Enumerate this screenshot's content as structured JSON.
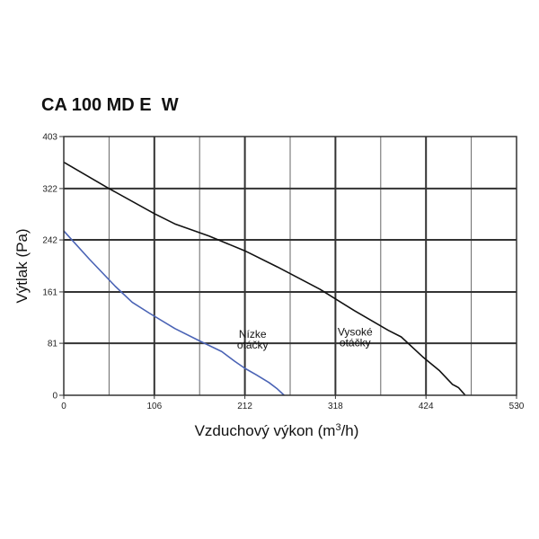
{
  "chart_data": {
    "type": "line",
    "title": "CA 100 MD E  W",
    "xlabel": "Vzduchový výkon (m",
    "xlabel_sup": "3",
    "xlabel_end": "/h)",
    "ylabel": "Výtlak (Pa)",
    "xlim": [
      0,
      530
    ],
    "ylim": [
      0,
      403
    ],
    "x_ticks": [
      0,
      106,
      212,
      318,
      424,
      530
    ],
    "y_ticks": [
      0,
      81,
      161,
      242,
      322,
      403
    ],
    "x_tick_labels": [
      "0",
      "106",
      "212",
      "318",
      "424",
      "530"
    ],
    "y_tick_labels": [
      "0",
      "81",
      "161",
      "242",
      "322",
      "403"
    ],
    "grid": true,
    "legend": "none",
    "series": [
      {
        "color": "#111111",
        "x": [
          0,
          53,
          106,
          130,
          170,
          212,
          250,
          300,
          340,
          380,
          395,
          420,
          440,
          455,
          462,
          466,
          470
        ],
        "y": [
          363,
          322,
          283,
          267,
          248,
          225,
          200,
          165,
          132,
          101,
          91,
          60,
          38,
          17,
          12,
          6,
          0
        ]
      },
      {
        "color": "#4a63b5",
        "x": [
          0,
          30,
          60,
          80,
          100,
          130,
          160,
          185,
          200,
          212,
          225,
          240,
          250,
          258
        ],
        "y": [
          256,
          212,
          170,
          145,
          128,
          104,
          84,
          68,
          53,
          42,
          32,
          20,
          10,
          0
        ]
      }
    ],
    "annotations": [
      {
        "lines": [
          "Nízke",
          "otáčky"
        ],
        "x": 221,
        "y": 80
      },
      {
        "lines": [
          "Vysoké",
          "otáčky"
        ],
        "x": 341,
        "y": 83
      }
    ]
  }
}
